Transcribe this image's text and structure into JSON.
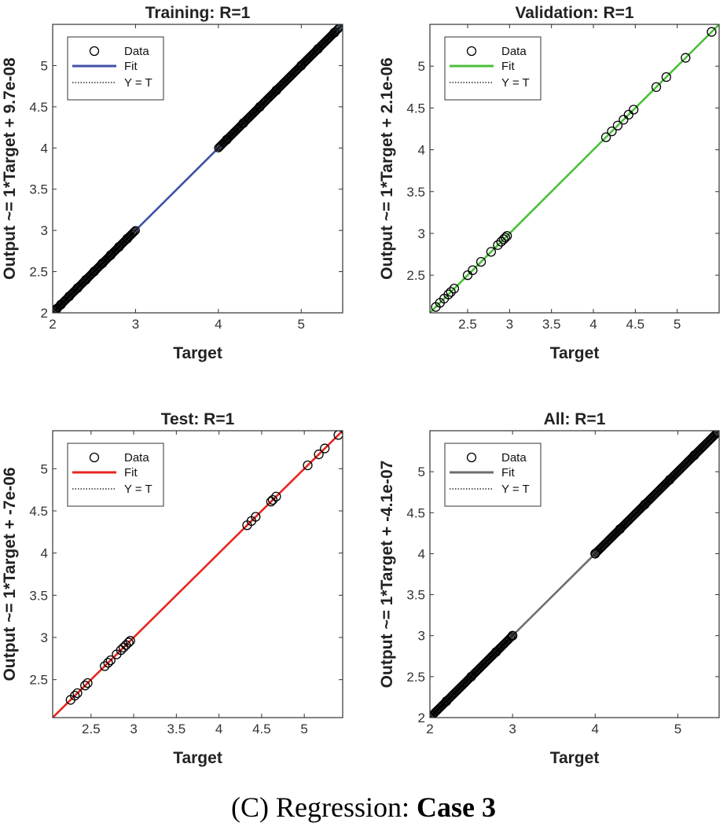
{
  "chart_data": [
    {
      "type": "scatter",
      "title": "Training: R=1",
      "xlabel": "Target",
      "ylabel": "Output ~= 1*Target + 9.7e-08",
      "xlim": [
        2,
        5.5
      ],
      "ylim": [
        2,
        5.5
      ],
      "xticks": [
        "2",
        "3",
        "4",
        "5"
      ],
      "yticks": [
        "2",
        "2.5",
        "3",
        "3.5",
        "4",
        "4.5",
        "5"
      ],
      "fit_color": "#3f51a5",
      "dense_ranges": [
        [
          2.0,
          3.0
        ],
        [
          4.0,
          5.45
        ]
      ],
      "points": [
        2.05,
        2.1,
        2.2,
        2.3,
        2.4,
        2.5,
        2.6,
        2.7,
        2.8,
        2.9,
        4.1,
        4.3,
        4.5,
        4.7,
        5.0,
        5.2,
        5.4
      ],
      "legend": [
        "Data",
        "Fit",
        "Y = T"
      ]
    },
    {
      "type": "scatter",
      "title": "Validation: R=1",
      "xlabel": "Target",
      "ylabel": "Output ~= 1*Target + 2.1e-06",
      "xlim": [
        2.05,
        5.5
      ],
      "ylim": [
        2.05,
        5.5
      ],
      "xticks": [
        "2.5",
        "3",
        "3.5",
        "4",
        "4.5",
        "5"
      ],
      "yticks": [
        "2.5",
        "3",
        "3.5",
        "4",
        "4.5",
        "5"
      ],
      "fit_color": "#4cbf3b",
      "dense_ranges": [],
      "points": [
        2.12,
        2.17,
        2.22,
        2.27,
        2.3,
        2.34,
        2.5,
        2.56,
        2.66,
        2.78,
        2.86,
        2.9,
        2.93,
        2.95,
        2.97,
        4.15,
        4.22,
        4.29,
        4.36,
        4.42,
        4.48,
        4.75,
        4.87,
        5.1,
        5.41
      ],
      "legend": [
        "Data",
        "Fit",
        "Y = T"
      ]
    },
    {
      "type": "scatter",
      "title": "Test: R=1",
      "xlabel": "Target",
      "ylabel": "Output ~= 1*Target + -7e-06",
      "xlim": [
        2.05,
        5.45
      ],
      "ylim": [
        2.05,
        5.45
      ],
      "xticks": [
        "2.5",
        "3",
        "3.5",
        "4",
        "4.5",
        "5"
      ],
      "yticks": [
        "2.5",
        "3",
        "3.5",
        "4",
        "4.5",
        "5"
      ],
      "fit_color": "#e8261e",
      "dense_ranges": [],
      "points": [
        2.26,
        2.31,
        2.34,
        2.43,
        2.46,
        2.66,
        2.7,
        2.73,
        2.8,
        2.85,
        2.88,
        2.91,
        2.94,
        2.96,
        4.33,
        4.38,
        4.43,
        4.61,
        4.63,
        4.67,
        5.04,
        5.17,
        5.24,
        5.4
      ],
      "legend": [
        "Data",
        "Fit",
        "Y = T"
      ]
    },
    {
      "type": "scatter",
      "title": "All: R=1",
      "xlabel": "Target",
      "ylabel": "Output ~= 1*Target + -4.1e-07",
      "xlim": [
        2,
        5.5
      ],
      "ylim": [
        2,
        5.5
      ],
      "xticks": [
        "2",
        "3",
        "4",
        "5"
      ],
      "yticks": [
        "2",
        "2.5",
        "3",
        "3.5",
        "4",
        "4.5",
        "5"
      ],
      "fit_color": "#6e6e6e",
      "dense_ranges": [
        [
          2.0,
          3.0
        ],
        [
          4.0,
          5.48
        ]
      ],
      "points": [
        2.0,
        2.2,
        2.5,
        2.8,
        3.0,
        4.0,
        4.3,
        4.6,
        4.9,
        5.2,
        5.48
      ],
      "legend": [
        "Data",
        "Fit",
        "Y = T"
      ]
    }
  ],
  "caption": {
    "prefix": "(C) Regression: ",
    "bold": "Case 3"
  }
}
